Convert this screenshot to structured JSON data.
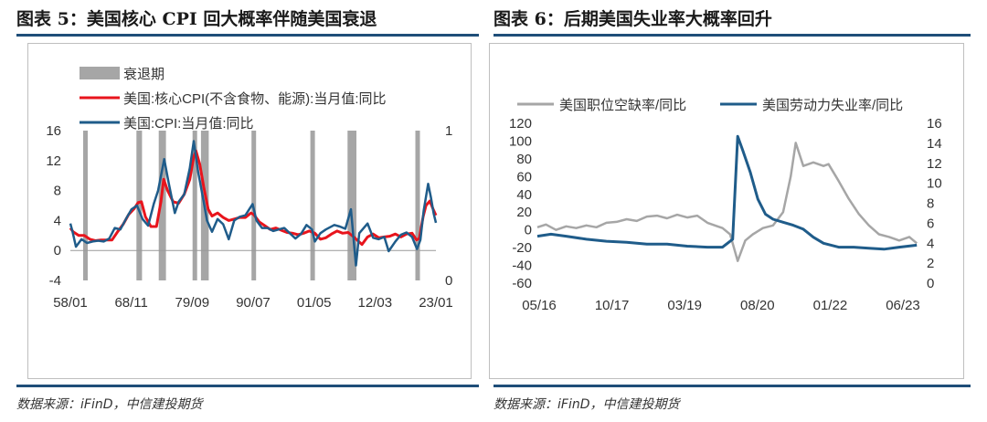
{
  "left": {
    "title": "图表 5：美国核心 CPI 回大概率伴随美国衰退",
    "source": "数据来源：iFinD，中信建投期货"
  },
  "right": {
    "title": "图表 6：后期美国失业率大概率回升",
    "source": "数据来源：iFinD，中信建投期货"
  },
  "colors": {
    "rule": "#1f4e79",
    "red": "#e8141c",
    "blue": "#1f5c8a",
    "gray": "#a6a6a6",
    "recession": "#a6a6a6"
  },
  "chart_data": [
    {
      "type": "line",
      "title": "",
      "legend": {
        "placement": "top-left",
        "items": [
          {
            "name": "衰退期",
            "kind": "bar",
            "color": "#a6a6a6"
          },
          {
            "name": "美国:核心CPI(不含食物、能源):当月值:同比",
            "kind": "line",
            "color": "#e8141c"
          },
          {
            "name": "美国:CPI:当月值:同比",
            "kind": "line",
            "color": "#1f5c8a"
          }
        ]
      },
      "x_ticks": [
        "58/01",
        "68/11",
        "79/09",
        "90/07",
        "01/05",
        "12/03",
        "23/01"
      ],
      "x_range": [
        1958.0,
        2023.8
      ],
      "y_left": {
        "range": [
          -4,
          16
        ],
        "ticks": [
          -4,
          0,
          4,
          8,
          12,
          16
        ]
      },
      "y_right": {
        "range": [
          0,
          1
        ],
        "ticks": [
          0,
          1
        ]
      },
      "recessions": [
        [
          1960.3,
          1961.1
        ],
        [
          1969.9,
          1970.9
        ],
        [
          1973.9,
          1975.2
        ],
        [
          1980.0,
          1980.6
        ],
        [
          1981.5,
          1982.9
        ],
        [
          1990.6,
          1991.2
        ],
        [
          2001.2,
          2001.9
        ],
        [
          2007.9,
          2009.5
        ],
        [
          2020.1,
          2020.4
        ]
      ],
      "series": [
        {
          "name": "美国:核心CPI(不含食物、能源):当月值:同比",
          "color": "#e8141c",
          "x": [
            1958.0,
            1958.5,
            1959.5,
            1960.5,
            1961.5,
            1962.5,
            1963.5,
            1964.5,
            1965.5,
            1966.5,
            1967.5,
            1968.5,
            1969.5,
            1970.2,
            1970.8,
            1971.5,
            1972.5,
            1973.5,
            1974.3,
            1974.8,
            1975.5,
            1976.5,
            1977.5,
            1978.5,
            1979.5,
            1980.2,
            1980.6,
            1981.3,
            1982.0,
            1982.8,
            1983.5,
            1984.5,
            1985.5,
            1986.5,
            1987.5,
            1988.5,
            1989.5,
            1990.5,
            1991.0,
            1992.0,
            1993.0,
            1994.0,
            1995.0,
            1996.0,
            1997.0,
            1998.0,
            1999.0,
            2000.0,
            2001.0,
            2002.0,
            2003.0,
            2004.0,
            2005.0,
            2006.0,
            2007.0,
            2008.0,
            2009.0,
            2010.5,
            2011.5,
            2012.5,
            2013.5,
            2014.5,
            2015.5,
            2016.5,
            2017.5,
            2018.5,
            2019.5,
            2020.3,
            2020.8,
            2021.5,
            2022.0,
            2022.7,
            2023.3,
            2023.8
          ],
          "values": [
            3.0,
            2.5,
            2.0,
            2.0,
            1.5,
            1.3,
            1.4,
            1.4,
            1.4,
            2.5,
            3.5,
            4.8,
            5.6,
            6.4,
            6.5,
            4.5,
            3.2,
            3.2,
            6.5,
            9.5,
            8.0,
            6.5,
            6.3,
            7.5,
            9.5,
            12.5,
            13.3,
            11.5,
            8.5,
            5.5,
            4.6,
            5.0,
            4.4,
            4.0,
            4.2,
            4.4,
            4.4,
            5.0,
            4.8,
            3.8,
            3.3,
            2.8,
            3.0,
            2.7,
            2.4,
            2.3,
            2.1,
            2.3,
            2.6,
            2.3,
            1.5,
            1.7,
            2.2,
            2.6,
            2.3,
            2.4,
            1.8,
            0.8,
            1.8,
            2.2,
            1.7,
            1.8,
            1.9,
            2.2,
            1.8,
            2.2,
            2.3,
            1.4,
            1.6,
            4.5,
            6.0,
            6.6,
            5.5,
            4.7
          ]
        },
        {
          "name": "美国:CPI:当月值:同比",
          "color": "#1f5c8a",
          "x": [
            1958.0,
            1958.4,
            1959.0,
            1960.0,
            1961.0,
            1962.0,
            1963.0,
            1964.0,
            1965.0,
            1966.0,
            1967.0,
            1968.0,
            1969.0,
            1970.0,
            1971.0,
            1972.0,
            1973.0,
            1973.8,
            1974.9,
            1975.7,
            1976.8,
            1977.5,
            1978.5,
            1979.5,
            1980.2,
            1981.0,
            1982.0,
            1982.6,
            1983.5,
            1984.5,
            1985.5,
            1986.5,
            1987.5,
            1988.5,
            1989.5,
            1990.8,
            1991.5,
            1992.5,
            1993.5,
            1994.5,
            1995.5,
            1996.5,
            1997.5,
            1998.5,
            1999.5,
            2000.5,
            2001.5,
            2002.0,
            2003.0,
            2004.0,
            2005.5,
            2006.5,
            2007.5,
            2008.5,
            2009.4,
            2010.0,
            2011.5,
            2012.5,
            2013.5,
            2014.5,
            2015.3,
            2016.5,
            2017.5,
            2018.5,
            2019.5,
            2020.4,
            2021.0,
            2021.6,
            2022.4,
            2022.9,
            2023.4,
            2023.8
          ],
          "values": [
            3.6,
            2.5,
            0.5,
            1.5,
            1.0,
            1.2,
            1.3,
            1.2,
            1.6,
            3.0,
            2.8,
            4.2,
            5.5,
            6.0,
            4.2,
            3.3,
            6.2,
            8.0,
            12.2,
            9.0,
            5.0,
            6.5,
            7.5,
            11.0,
            14.6,
            10.5,
            6.5,
            4.0,
            2.5,
            4.2,
            3.5,
            1.5,
            4.0,
            4.5,
            4.7,
            6.2,
            4.0,
            3.0,
            3.0,
            2.6,
            2.8,
            3.0,
            2.3,
            1.6,
            2.2,
            3.4,
            2.8,
            1.2,
            2.3,
            2.8,
            3.4,
            3.2,
            2.9,
            5.5,
            -2.0,
            2.3,
            3.6,
            1.7,
            1.5,
            1.8,
            -0.1,
            1.2,
            2.1,
            2.4,
            1.8,
            0.2,
            1.4,
            5.3,
            8.9,
            7.1,
            4.9,
            3.7
          ]
        }
      ]
    },
    {
      "type": "line",
      "title": "",
      "legend": {
        "placement": "top",
        "items": [
          {
            "name": "美国职位空缺率/同比",
            "kind": "line",
            "color": "#a6a6a6"
          },
          {
            "name": "美国劳动力失业率/同比",
            "kind": "line",
            "color": "#1f5c8a"
          }
        ]
      },
      "x_ticks": [
        "05/16",
        "10/17",
        "03/19",
        "08/20",
        "01/22",
        "06/23"
      ],
      "x_range": [
        2016.33,
        2023.9
      ],
      "y_left": {
        "range": [
          -60,
          120
        ],
        "ticks": [
          -60,
          -40,
          -20,
          0,
          20,
          40,
          60,
          80,
          100,
          120
        ]
      },
      "y_right": {
        "range": [
          0,
          16
        ],
        "ticks": [
          0,
          2,
          4,
          6,
          8,
          10,
          12,
          14,
          16
        ]
      },
      "series": [
        {
          "name": "美国职位空缺率/同比",
          "color": "#a6a6a6",
          "axis": "left",
          "x": [
            2016.33,
            2016.5,
            2016.7,
            2016.9,
            2017.1,
            2017.3,
            2017.5,
            2017.7,
            2017.9,
            2018.1,
            2018.3,
            2018.5,
            2018.7,
            2018.9,
            2019.1,
            2019.3,
            2019.5,
            2019.7,
            2019.9,
            2020.0,
            2020.15,
            2020.3,
            2020.45,
            2020.6,
            2020.8,
            2021.0,
            2021.2,
            2021.35,
            2021.45,
            2021.6,
            2021.8,
            2022.0,
            2022.1,
            2022.3,
            2022.5,
            2022.7,
            2022.9,
            2023.1,
            2023.3,
            2023.5,
            2023.7,
            2023.85
          ],
          "values": [
            3,
            6,
            0,
            4,
            2,
            5,
            3,
            8,
            9,
            12,
            10,
            15,
            16,
            13,
            17,
            14,
            16,
            8,
            4,
            2,
            -5,
            -35,
            -12,
            -5,
            2,
            5,
            20,
            60,
            98,
            72,
            76,
            72,
            74,
            55,
            35,
            18,
            5,
            -5,
            -8,
            -12,
            -8,
            -15
          ]
        },
        {
          "name": "美国劳动力失业率/同比",
          "color": "#1f5c8a",
          "axis": "right",
          "x": [
            2016.33,
            2016.6,
            2016.9,
            2017.3,
            2017.7,
            2018.1,
            2018.5,
            2018.9,
            2019.3,
            2019.7,
            2020.0,
            2020.2,
            2020.3,
            2020.4,
            2020.55,
            2020.7,
            2020.85,
            2021.0,
            2021.2,
            2021.4,
            2021.6,
            2021.8,
            2022.0,
            2022.3,
            2022.6,
            2022.9,
            2023.2,
            2023.5,
            2023.85
          ],
          "values": [
            4.7,
            4.9,
            4.7,
            4.4,
            4.2,
            4.1,
            3.9,
            3.9,
            3.7,
            3.6,
            3.6,
            4.4,
            14.7,
            13.3,
            11.1,
            8.4,
            6.9,
            6.4,
            6.1,
            5.8,
            5.4,
            4.6,
            4.0,
            3.6,
            3.6,
            3.5,
            3.4,
            3.6,
            3.8
          ]
        }
      ]
    }
  ]
}
